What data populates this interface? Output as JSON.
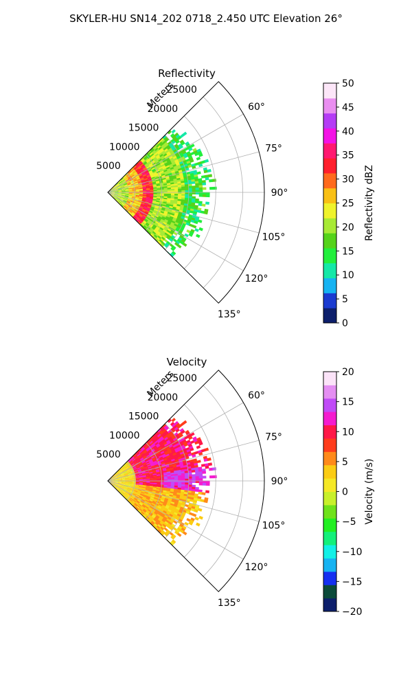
{
  "figure": {
    "title": "SKYLER-HU  SN14_202  0718_2.450 UTC Elevation 26°"
  },
  "chart_data": [
    {
      "type": "heatmap",
      "projection": "polar-sector",
      "title": "Reflectivity",
      "range_axis_label": "Meters",
      "range_ticks": [
        5000,
        10000,
        15000,
        20000,
        25000
      ],
      "range_tick_labels": [
        "5000",
        "10000",
        "15000",
        "20000",
        "25000"
      ],
      "rmax": 29000,
      "azimuth_range": [
        45,
        135
      ],
      "azimuth_ticks": [
        60,
        75,
        90,
        105,
        120,
        135
      ],
      "azimuth_tick_labels": [
        "60°",
        "75°",
        "90°",
        "105°",
        "120°",
        "135°"
      ],
      "echo_extent_m": 19000,
      "grid": true,
      "colorbar": {
        "label": "Reflectivity dBZ",
        "min": 0,
        "max": 50,
        "ticks": [
          0,
          5,
          10,
          15,
          20,
          25,
          30,
          35,
          40,
          45,
          50
        ],
        "tick_labels": [
          "0",
          "5",
          "10",
          "15",
          "20",
          "25",
          "30",
          "35",
          "40",
          "45",
          "50"
        ],
        "colormap": [
          "#0d1f6b",
          "#1b3bd0",
          "#16b3f2",
          "#14e8a7",
          "#22ef3c",
          "#55d31a",
          "#a8ea35",
          "#eff32c",
          "#f9c015",
          "#ff6a1d",
          "#ff1f2d",
          "#ff1870",
          "#f312e5",
          "#b43cf5",
          "#e98ef0",
          "#fce6f8"
        ]
      },
      "field_summary": [
        {
          "range_m": [
            0,
            4000
          ],
          "value": 21
        },
        {
          "range_m": [
            4000,
            6500
          ],
          "value": 26
        },
        {
          "range_m": [
            6500,
            8500
          ],
          "value": 33
        },
        {
          "range_m": [
            8500,
            14000
          ],
          "value": 20
        },
        {
          "range_m": [
            14000,
            19000
          ],
          "value": 15
        }
      ]
    },
    {
      "type": "heatmap",
      "projection": "polar-sector",
      "title": "Velocity",
      "range_axis_label": "Meters",
      "range_ticks": [
        5000,
        10000,
        15000,
        20000,
        25000
      ],
      "range_tick_labels": [
        "5000",
        "10000",
        "15000",
        "20000",
        "25000"
      ],
      "rmax": 29000,
      "azimuth_range": [
        45,
        135
      ],
      "azimuth_ticks": [
        60,
        75,
        90,
        105,
        120,
        135
      ],
      "azimuth_tick_labels": [
        "60°",
        "75°",
        "90°",
        "105°",
        "120°",
        "135°"
      ],
      "echo_extent_m": 19000,
      "grid": true,
      "colorbar": {
        "label": "Velocity (m/s)",
        "min": -20,
        "max": 20,
        "ticks": [
          -20,
          -15,
          -10,
          -5,
          0,
          5,
          10,
          15,
          20
        ],
        "tick_labels": [
          "−20",
          "−15",
          "−10",
          "−5",
          "0",
          "5",
          "10",
          "15",
          "20"
        ],
        "colormap": [
          "#0d1f6b",
          "#0b4a3a",
          "#1530f0",
          "#16b3f2",
          "#12f0e6",
          "#14f07a",
          "#22ef22",
          "#6fe21a",
          "#c8f02a",
          "#f5e826",
          "#fbcc14",
          "#ff8a1a",
          "#ff3c1c",
          "#ff1848",
          "#f41ccf",
          "#c04bf7",
          "#e48ef2",
          "#fbe3f8"
        ]
      },
      "field_summary": [
        {
          "sector": "near-range",
          "value": 2
        },
        {
          "sector": "north-mid-range",
          "value": 10
        },
        {
          "sector": "east-far-range",
          "value": 13
        },
        {
          "sector": "south",
          "value": 4
        }
      ]
    }
  ]
}
